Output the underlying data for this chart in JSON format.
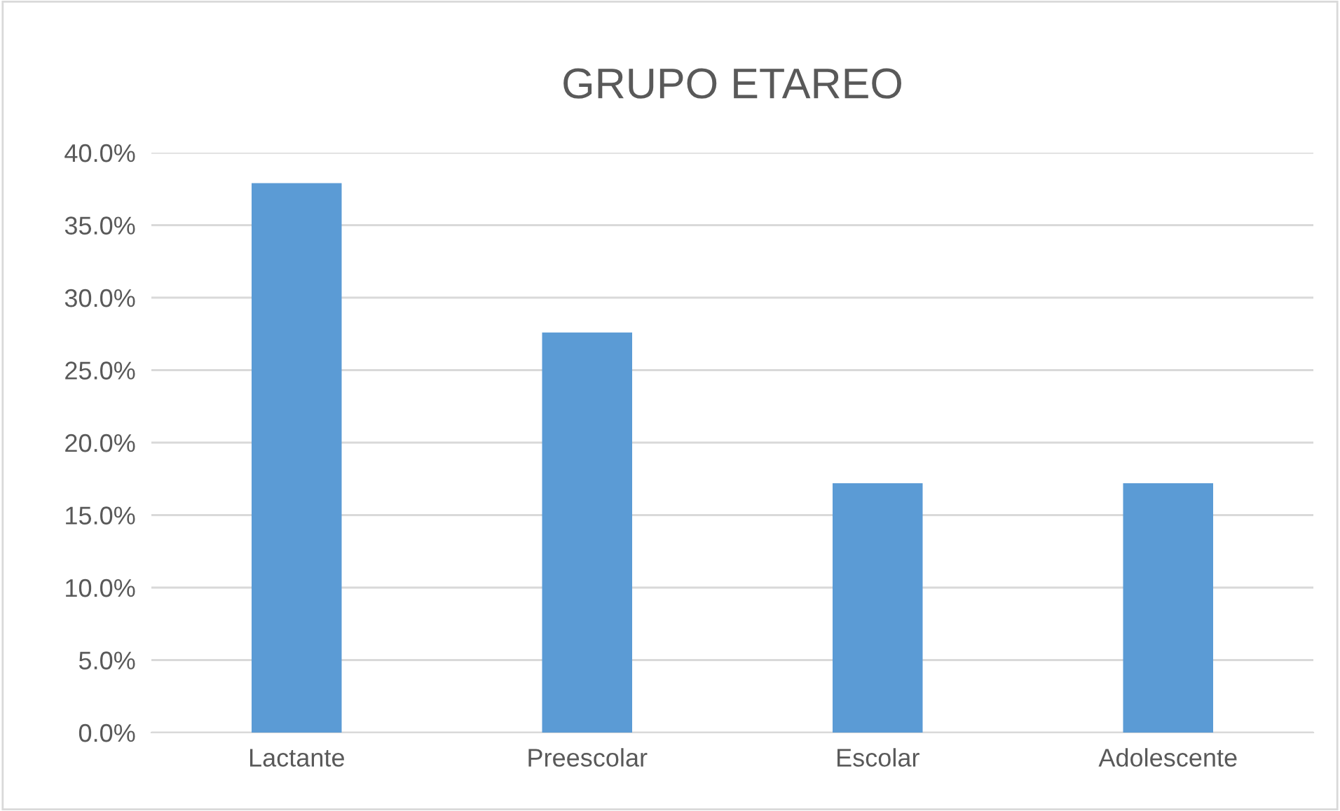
{
  "chart_data": {
    "type": "bar",
    "title": "GRUPO ETAREO",
    "categories": [
      "Lactante",
      "Preescolar",
      "Escolar",
      "Adolescente"
    ],
    "values": [
      37.9,
      27.6,
      17.2,
      17.2
    ],
    "color": "#5b9bd5",
    "ylim": [
      0,
      40
    ],
    "yticks": [
      {
        "value": 0,
        "label": "0.0%"
      },
      {
        "value": 5,
        "label": "5.0%"
      },
      {
        "value": 10,
        "label": "10.0%"
      },
      {
        "value": 15,
        "label": "15.0%"
      },
      {
        "value": 20,
        "label": "20.0%"
      },
      {
        "value": 25,
        "label": "25.0%"
      },
      {
        "value": 30,
        "label": "30.0%"
      },
      {
        "value": 35,
        "label": "35.0%"
      },
      {
        "value": 40,
        "label": "40.0%"
      }
    ],
    "grid": "y"
  }
}
